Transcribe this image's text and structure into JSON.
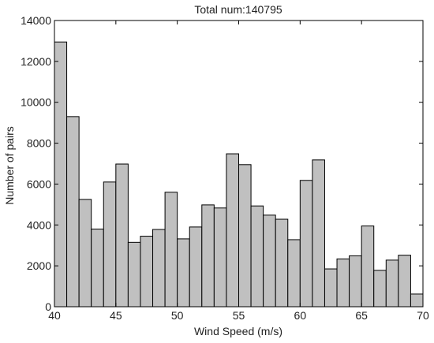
{
  "chart_data": {
    "type": "bar",
    "title": "Total num:140795",
    "xlabel": "Wind Speed (m/s)",
    "ylabel": "Number of pairs",
    "xlim": [
      40,
      70
    ],
    "ylim": [
      0,
      14000
    ],
    "xticks": [
      40,
      45,
      50,
      55,
      60,
      65,
      70
    ],
    "yticks": [
      0,
      2000,
      4000,
      6000,
      8000,
      10000,
      12000,
      14000
    ],
    "bin_width": 1,
    "grid": false,
    "bar_color": "#c0c0c0",
    "bar_edge_color": "#000000",
    "bins": [
      {
        "x": 40,
        "value": 12950
      },
      {
        "x": 41,
        "value": 9300
      },
      {
        "x": 42,
        "value": 5250
      },
      {
        "x": 43,
        "value": 3800
      },
      {
        "x": 44,
        "value": 6100
      },
      {
        "x": 45,
        "value": 6980
      },
      {
        "x": 46,
        "value": 3150
      },
      {
        "x": 47,
        "value": 3450
      },
      {
        "x": 48,
        "value": 3780
      },
      {
        "x": 49,
        "value": 5600
      },
      {
        "x": 50,
        "value": 3320
      },
      {
        "x": 51,
        "value": 3900
      },
      {
        "x": 52,
        "value": 4980
      },
      {
        "x": 53,
        "value": 4830
      },
      {
        "x": 54,
        "value": 7480
      },
      {
        "x": 55,
        "value": 6950
      },
      {
        "x": 56,
        "value": 4930
      },
      {
        "x": 57,
        "value": 4480
      },
      {
        "x": 58,
        "value": 4280
      },
      {
        "x": 59,
        "value": 3280
      },
      {
        "x": 60,
        "value": 6180
      },
      {
        "x": 61,
        "value": 7180
      },
      {
        "x": 62,
        "value": 1850
      },
      {
        "x": 63,
        "value": 2340
      },
      {
        "x": 64,
        "value": 2490
      },
      {
        "x": 65,
        "value": 3950
      },
      {
        "x": 66,
        "value": 1780
      },
      {
        "x": 67,
        "value": 2280
      },
      {
        "x": 68,
        "value": 2520
      },
      {
        "x": 69,
        "value": 620
      }
    ]
  }
}
